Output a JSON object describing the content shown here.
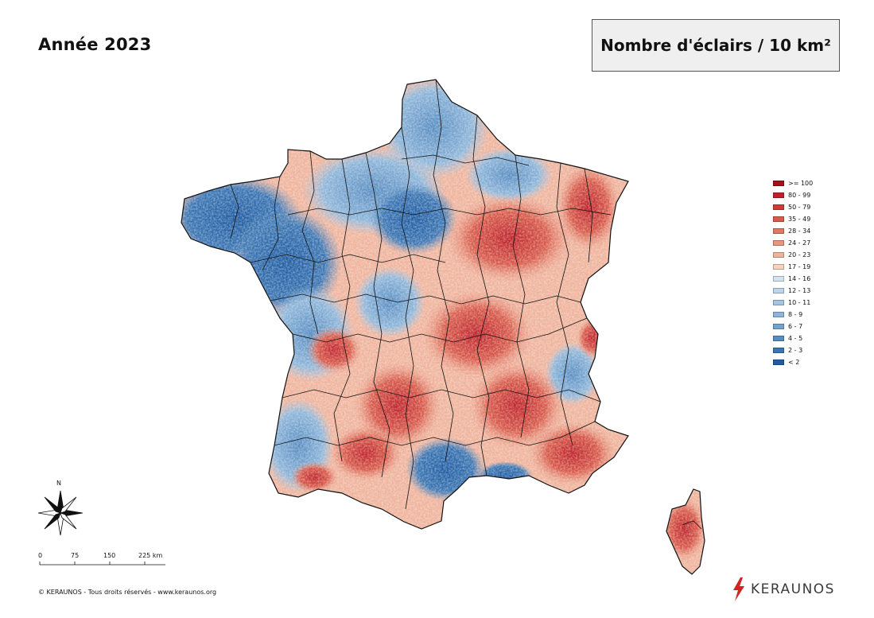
{
  "title": "Année 2023",
  "units": "Nombre d'éclairs / 10 km²",
  "legend": [
    {
      "label": ">= 100",
      "color": "#a50f15"
    },
    {
      "label": "80 - 99",
      "color": "#be2128"
    },
    {
      "label": "50 - 79",
      "color": "#cf3b34"
    },
    {
      "label": "35 - 49",
      "color": "#d85a4a"
    },
    {
      "label": "28 - 34",
      "color": "#e07862"
    },
    {
      "label": "24 - 27",
      "color": "#e8967e"
    },
    {
      "label": "20 - 23",
      "color": "#efb39c"
    },
    {
      "label": "17 - 19",
      "color": "#f7d3bf"
    },
    {
      "label": "14 - 16",
      "color": "#d3e3f1"
    },
    {
      "label": "12 - 13",
      "color": "#bcd5ea"
    },
    {
      "label": "10 - 11",
      "color": "#a5c6e2"
    },
    {
      "label": "8 - 9",
      "color": "#8db5d9"
    },
    {
      "label": "6 - 7",
      "color": "#72a2cf"
    },
    {
      "label": "4 - 5",
      "color": "#578cc1"
    },
    {
      "label": "2 - 3",
      "color": "#3b75b2"
    },
    {
      "label": "< 2",
      "color": "#1f5ca2"
    }
  ],
  "north_label": "N",
  "scale": {
    "labels": [
      "0",
      "75",
      "150",
      "225 km"
    ]
  },
  "copyright": "© KERAUNOS - Tous droits réservés - www.keraunos.org",
  "brand": {
    "name": "KERAUNOS",
    "color": "#d2231f"
  },
  "icons": {
    "compass": "compass-rose-icon",
    "brand": "lightning-bolt-icon"
  }
}
